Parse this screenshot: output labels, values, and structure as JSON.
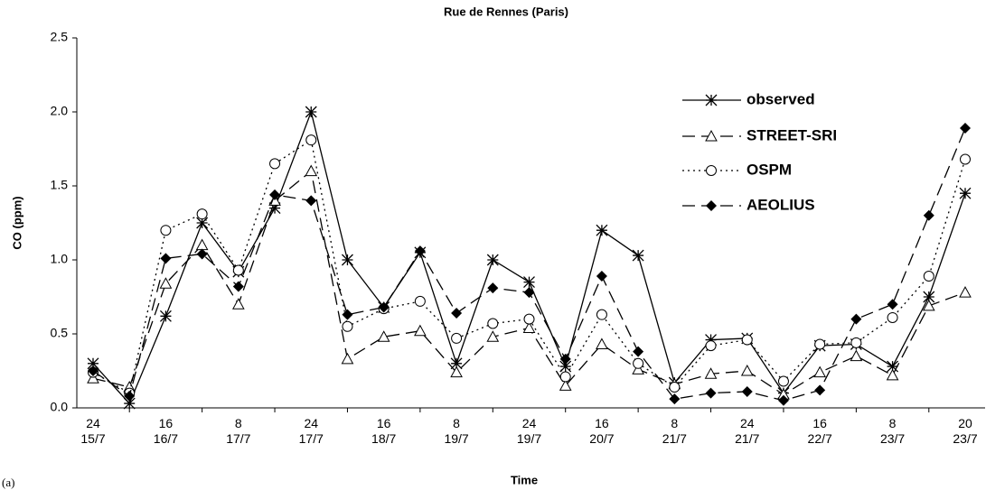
{
  "chart_data": {
    "type": "line",
    "title": "Rue de Rennes (Paris)",
    "ylabel": "CO (ppm)",
    "xlabel": "Time",
    "panel_label": "(a)",
    "categories": [
      [
        "24",
        "15/7"
      ],
      null,
      [
        "16",
        "16/7"
      ],
      null,
      [
        "8",
        "17/7"
      ],
      null,
      [
        "24",
        "17/7"
      ],
      null,
      [
        "16",
        "18/7"
      ],
      null,
      [
        "8",
        "19/7"
      ],
      null,
      [
        "24",
        "19/7"
      ],
      null,
      [
        "16",
        "20/7"
      ],
      null,
      [
        "8",
        "21/7"
      ],
      null,
      [
        "24",
        "21/7"
      ],
      null,
      [
        "16",
        "22/7"
      ],
      null,
      [
        "8",
        "23/7"
      ],
      null,
      [
        "20",
        "23/7"
      ]
    ],
    "series": [
      {
        "name": "observed",
        "color": "#000000",
        "marker": "star",
        "dash": "solid",
        "values": [
          0.3,
          0.03,
          0.62,
          1.25,
          0.92,
          1.35,
          2.0,
          1.0,
          0.68,
          1.05,
          0.3,
          1.0,
          0.85,
          0.28,
          1.2,
          1.03,
          0.17,
          0.46,
          0.47,
          0.1,
          0.42,
          0.43,
          0.28,
          0.75,
          1.45
        ]
      },
      {
        "name": "STREET-SRI",
        "color": "#000000",
        "marker": "triangle",
        "dash": "dashed",
        "values": [
          0.2,
          0.14,
          0.84,
          1.1,
          0.7,
          1.4,
          1.6,
          0.33,
          0.48,
          0.52,
          0.24,
          0.48,
          0.54,
          0.15,
          0.43,
          0.26,
          0.16,
          0.23,
          0.25,
          0.09,
          0.24,
          0.35,
          0.22,
          0.69,
          0.78
        ]
      },
      {
        "name": "OSPM",
        "color": "#000000",
        "marker": "circle",
        "dash": "dotted",
        "values": [
          0.24,
          0.1,
          1.2,
          1.31,
          0.93,
          1.65,
          1.81,
          0.55,
          0.67,
          0.72,
          0.47,
          0.57,
          0.6,
          0.21,
          0.63,
          0.3,
          0.14,
          0.42,
          0.46,
          0.18,
          0.43,
          0.44,
          0.61,
          0.89,
          1.68
        ]
      },
      {
        "name": "AEOLIUS",
        "color": "#000000",
        "marker": "diamond",
        "dash": "dashed",
        "values": [
          0.25,
          0.08,
          1.01,
          1.04,
          0.82,
          1.44,
          1.4,
          0.63,
          0.68,
          1.06,
          0.64,
          0.81,
          0.78,
          0.33,
          0.89,
          0.38,
          0.06,
          0.1,
          0.11,
          0.05,
          0.12,
          0.6,
          0.7,
          1.3,
          1.89
        ]
      }
    ],
    "ylim": [
      0,
      2.5
    ],
    "yticks": [
      {
        "value": 0,
        "label": "0.0"
      },
      {
        "value": 0.5,
        "label": "0.5"
      },
      {
        "value": 1,
        "label": "1.0"
      },
      {
        "value": 1.5,
        "label": "1.5"
      },
      {
        "value": 2,
        "label": "2.0"
      },
      {
        "value": 2.5,
        "label": "2.5"
      }
    ],
    "grid": false,
    "legend": "upper right"
  }
}
